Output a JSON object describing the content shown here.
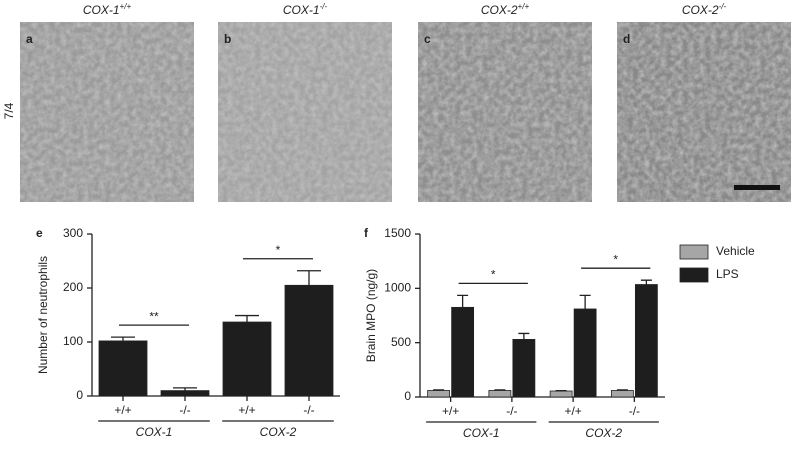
{
  "images": {
    "row_label": "7/4",
    "panels": [
      {
        "letter": "a",
        "gene": "COX-1",
        "genotype": "+/+"
      },
      {
        "letter": "b",
        "gene": "COX-1",
        "genotype": "-/-"
      },
      {
        "letter": "c",
        "gene": "COX-2",
        "genotype": "+/+"
      },
      {
        "letter": "d",
        "gene": "COX-2",
        "genotype": "-/-"
      }
    ]
  },
  "chart_data": [
    {
      "type": "bar",
      "panel": "e",
      "y_label": "Number of neutrophils",
      "categories": [
        "+/+",
        "-/-",
        "+/+",
        "-/-"
      ],
      "groups": [
        "COX-1",
        "COX-2"
      ],
      "series": [
        {
          "color": "#1e1e1e",
          "values": [
            102,
            10,
            137,
            205
          ],
          "errors": [
            7,
            5,
            12,
            27
          ]
        }
      ],
      "annotations": [
        "**",
        "*"
      ],
      "ylim": [
        0,
        300
      ],
      "yticks": [
        0,
        100,
        200,
        300
      ]
    },
    {
      "type": "bar",
      "panel": "f",
      "y_label": "Brain MPO (ng/g)",
      "categories": [
        "+/+",
        "-/-",
        "+/+",
        "-/-"
      ],
      "groups": [
        "COX-1",
        "COX-2"
      ],
      "series": [
        {
          "name": "Vehicle",
          "color": "#a6a6a6",
          "values": [
            60,
            60,
            55,
            60
          ],
          "errors": [
            5,
            5,
            3,
            5
          ]
        },
        {
          "name": "LPS",
          "color": "#1e1e1e",
          "values": [
            825,
            530,
            810,
            1035
          ],
          "errors": [
            110,
            55,
            125,
            40
          ]
        }
      ],
      "annotations": [
        "*",
        "*"
      ],
      "ylim": [
        0,
        1500
      ],
      "yticks": [
        0,
        500,
        1000,
        1500
      ]
    }
  ]
}
